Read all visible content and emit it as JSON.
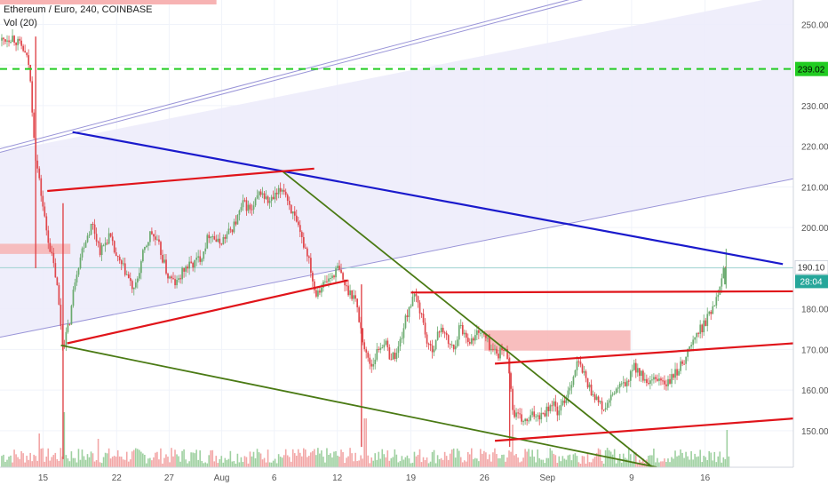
{
  "legend": {
    "title": "Ethereum / Euro, 240, COINBASE",
    "volume": "Vol (20)"
  },
  "colors": {
    "up": "#6aaa6e",
    "down": "#e0474c",
    "vol_up": "#9ed0a0",
    "vol_down": "#f2a6a6",
    "channel_fill": "#ecebfa",
    "channel_line": "#9a95d8",
    "blue_line": "#1a1acc",
    "red_line": "#e0141a",
    "green_line": "#4a7a14",
    "resistance_dash": "#22cc22",
    "supply_zone": "#f7b3b3"
  },
  "badges": {
    "resistance": "239.02",
    "last_price": "190.10",
    "countdown": "28:04"
  },
  "chart_data": {
    "type": "candlestick",
    "title": "Ethereum / Euro, 240, COINBASE",
    "ylim": [
      141,
      256
    ],
    "y_ticks": [
      150,
      160,
      170,
      180,
      190,
      200,
      210,
      220,
      230,
      240,
      250
    ],
    "y_tick_labels": [
      "150.00",
      "160.00",
      "170.00",
      "180.00",
      "190.00",
      "200.00",
      "210.00",
      "220.00",
      "230.00",
      "240.00",
      "250.00"
    ],
    "x_ticks": [
      "15",
      "22",
      "27",
      "Aug",
      "6",
      "12",
      "19",
      "26",
      "Sep",
      "9",
      "16"
    ],
    "x_tick_days": [
      15,
      22,
      27,
      32,
      37,
      43,
      50,
      57,
      63,
      71,
      78
    ],
    "x_range_days": [
      10.9,
      86.4
    ],
    "x_unit": "days from July 0",
    "resistance_level": 239.02,
    "last_price": 190.1,
    "price_path": [
      [
        10.9,
        246
      ],
      [
        12.0,
        247
      ],
      [
        13.0,
        244
      ],
      [
        13.6,
        240
      ],
      [
        14.2,
        218
      ],
      [
        15.2,
        200
      ],
      [
        16.2,
        187
      ],
      [
        16.8,
        171
      ],
      [
        17.4,
        176
      ],
      [
        18.0,
        188
      ],
      [
        18.8,
        196
      ],
      [
        19.6,
        201
      ],
      [
        20.4,
        194
      ],
      [
        21.2,
        198
      ],
      [
        22.0,
        192
      ],
      [
        22.8,
        189
      ],
      [
        23.6,
        184
      ],
      [
        24.4,
        193
      ],
      [
        25.2,
        199
      ],
      [
        26.0,
        195
      ],
      [
        26.8,
        188
      ],
      [
        27.6,
        186
      ],
      [
        28.4,
        190
      ],
      [
        29.2,
        191
      ],
      [
        30.0,
        193
      ],
      [
        30.8,
        199
      ],
      [
        31.6,
        196
      ],
      [
        32.4,
        198
      ],
      [
        33.2,
        201
      ],
      [
        34.0,
        206
      ],
      [
        34.8,
        204
      ],
      [
        35.6,
        209
      ],
      [
        36.4,
        206
      ],
      [
        37.2,
        208
      ],
      [
        37.8,
        210
      ],
      [
        38.6,
        204
      ],
      [
        39.4,
        198
      ],
      [
        40.2,
        193
      ],
      [
        40.8,
        184
      ],
      [
        41.6,
        186
      ],
      [
        42.4,
        188
      ],
      [
        43.0,
        190
      ],
      [
        43.8,
        185
      ],
      [
        44.6,
        183
      ],
      [
        45.1,
        176
      ],
      [
        45.6,
        169
      ],
      [
        46.2,
        166
      ],
      [
        46.8,
        170
      ],
      [
        47.4,
        172
      ],
      [
        48.0,
        168
      ],
      [
        48.6,
        169
      ],
      [
        49.2,
        175
      ],
      [
        49.8,
        181
      ],
      [
        50.4,
        183
      ],
      [
        51.0,
        178
      ],
      [
        51.6,
        170
      ],
      [
        52.2,
        171
      ],
      [
        52.8,
        176
      ],
      [
        53.4,
        172
      ],
      [
        54.0,
        170
      ],
      [
        54.6,
        176
      ],
      [
        55.2,
        173
      ],
      [
        55.8,
        172
      ],
      [
        56.4,
        175
      ],
      [
        57.0,
        173
      ],
      [
        57.6,
        170
      ],
      [
        58.2,
        169
      ],
      [
        58.8,
        170
      ],
      [
        59.2,
        168
      ],
      [
        59.6,
        155
      ],
      [
        60.2,
        153
      ],
      [
        61.0,
        152
      ],
      [
        61.6,
        154
      ],
      [
        62.2,
        154
      ],
      [
        62.8,
        155
      ],
      [
        63.4,
        157
      ],
      [
        64.0,
        154
      ],
      [
        64.6,
        158
      ],
      [
        65.2,
        162
      ],
      [
        65.8,
        167
      ],
      [
        66.4,
        164
      ],
      [
        67.0,
        160
      ],
      [
        67.6,
        158
      ],
      [
        68.2,
        155
      ],
      [
        68.8,
        157
      ],
      [
        69.4,
        160
      ],
      [
        70.0,
        161
      ],
      [
        70.6,
        162
      ],
      [
        71.2,
        166
      ],
      [
        71.8,
        164
      ],
      [
        72.4,
        161
      ],
      [
        73.0,
        162
      ],
      [
        73.6,
        163
      ],
      [
        74.2,
        161
      ],
      [
        74.8,
        163
      ],
      [
        75.4,
        165
      ],
      [
        76.0,
        168
      ],
      [
        76.6,
        171
      ],
      [
        77.2,
        174
      ],
      [
        77.8,
        176
      ],
      [
        78.4,
        179
      ],
      [
        79.0,
        183
      ],
      [
        79.6,
        189
      ],
      [
        79.9,
        190.1
      ]
    ],
    "volume_path_note": "volume bars drawn beneath price, heights in relative units",
    "volume_spikes": [
      [
        17.0,
        0.62
      ],
      [
        14.6,
        0.38
      ],
      [
        45.6,
        0.55
      ],
      [
        59.6,
        0.48
      ],
      [
        20.2,
        0.32
      ],
      [
        80.0,
        0.42
      ]
    ],
    "shapes": {
      "channel_band": {
        "lower_start": [
          10.9,
          173
        ],
        "lower_end": [
          86.4,
          212
        ],
        "upper_start": [
          10.9,
          218.5
        ],
        "upper_end": [
          67.7,
          257
        ]
      },
      "blue_trendline": [
        [
          17.8,
          223.5
        ],
        [
          85.4,
          191
        ]
      ],
      "red_lines": [
        [
          [
            15.4,
            209
          ],
          [
            40.8,
            214.5
          ]
        ],
        [
          [
            17.3,
            171.5
          ],
          [
            44.0,
            187
          ]
        ],
        [
          [
            50.0,
            184
          ],
          [
            86.4,
            184.3
          ]
        ],
        [
          [
            58.0,
            166.5
          ],
          [
            86.4,
            171.5
          ]
        ],
        [
          [
            58.0,
            147.5
          ],
          [
            86.4,
            153
          ]
        ]
      ],
      "green_lines": [
        [
          [
            37.7,
            214
          ],
          [
            73.0,
            141
          ]
        ],
        [
          [
            16.7,
            171
          ],
          [
            73.4,
            141
          ]
        ]
      ],
      "supply_zones": [
        {
          "from": [
            10.9,
            196
          ],
          "to": [
            17.6,
            193.5
          ]
        },
        {
          "from": [
            57.0,
            174.7
          ],
          "to": [
            70.9,
            169.7
          ]
        }
      ],
      "top_marker": {
        "from": [
          10.9,
          257
        ],
        "to": [
          31.5,
          255
        ]
      }
    }
  }
}
